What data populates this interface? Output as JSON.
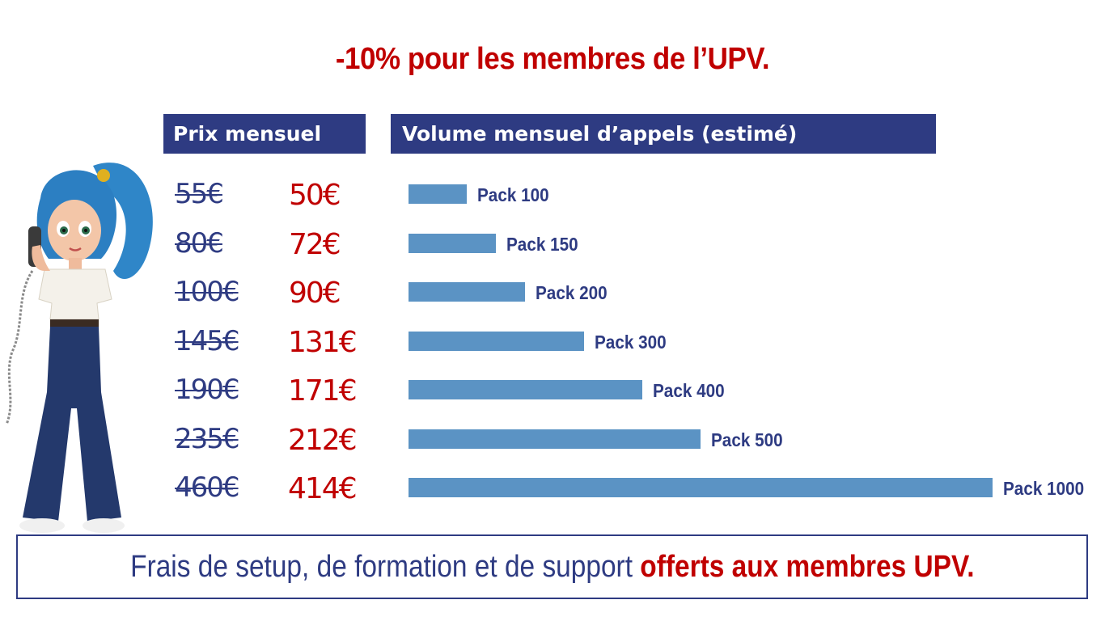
{
  "title": "-10% pour les membres de l’UPV.",
  "headers": {
    "price": "Prix mensuel",
    "volume": "Volume mensuel d’appels (estimé)"
  },
  "footer": {
    "normal_text": "Frais de setup, de formation et de support ",
    "bold_text": "offerts aux membres UPV."
  },
  "colors": {
    "accent_red": "#c00000",
    "navy": "#2e3b82",
    "bar_blue": "#5b93c4"
  },
  "illustration": {
    "icon": "woman-on-telephone-illustration"
  },
  "chart_data": {
    "type": "bar",
    "orientation": "horizontal",
    "categories": [
      "Pack 100",
      "Pack 150",
      "Pack 200",
      "Pack 300",
      "Pack 400",
      "Pack 500",
      "Pack 1000"
    ],
    "values": [
      100,
      150,
      200,
      300,
      400,
      500,
      1000
    ],
    "old_prices": [
      "55€",
      "80€",
      "100€",
      "145€",
      "190€",
      "235€",
      "460€"
    ],
    "new_prices": [
      "50€",
      "72€",
      "90€",
      "131€",
      "171€",
      "212€",
      "414€"
    ],
    "xlim": [
      0,
      1000
    ],
    "grid": false
  }
}
